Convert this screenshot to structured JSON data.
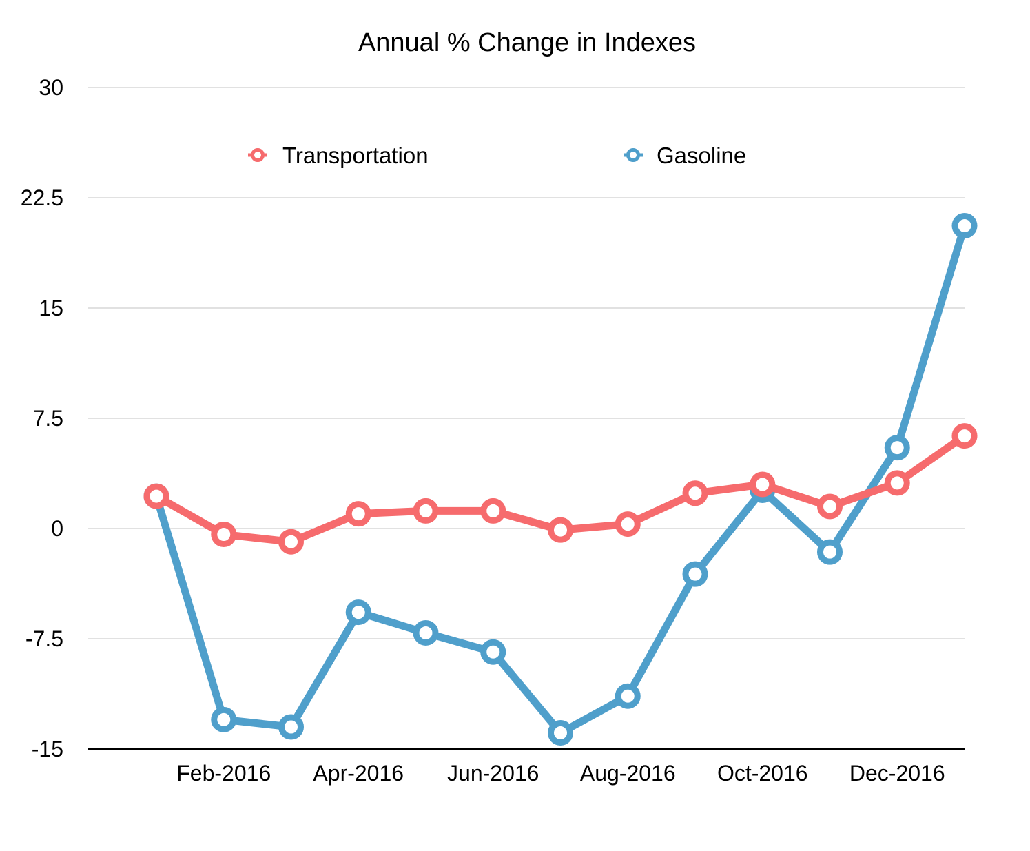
{
  "chart_data": {
    "type": "line",
    "title": "Annual % Change in Indexes",
    "xlabel": "",
    "ylabel": "",
    "x": [
      "Jan-2016",
      "Feb-2016",
      "Mar-2016",
      "Apr-2016",
      "May-2016",
      "Jun-2016",
      "Jul-2016",
      "Aug-2016",
      "Sep-2016",
      "Oct-2016",
      "Nov-2016",
      "Dec-2016",
      "Jan-2017"
    ],
    "x_tick_labels": [
      "Feb-2016",
      "Apr-2016",
      "Jun-2016",
      "Aug-2016",
      "Oct-2016",
      "Dec-2016"
    ],
    "y_ticks": [
      "30",
      "22.5",
      "15",
      "7.5",
      "0",
      "-7.5",
      "-15"
    ],
    "ylim": [
      -15,
      30
    ],
    "grid": true,
    "legend": "top",
    "series": [
      {
        "name": "Transportation",
        "color": "#f66b6d",
        "values": [
          2.2,
          -0.4,
          -0.9,
          1.0,
          1.2,
          1.2,
          -0.1,
          0.3,
          2.4,
          3.0,
          1.5,
          3.1,
          6.3
        ]
      },
      {
        "name": "Gasoline",
        "color": "#4f9fcb",
        "values": [
          2.2,
          -13.0,
          -13.5,
          -5.7,
          -7.1,
          -8.4,
          -13.9,
          -11.4,
          -3.1,
          2.6,
          -1.6,
          5.5,
          20.6
        ]
      }
    ]
  }
}
